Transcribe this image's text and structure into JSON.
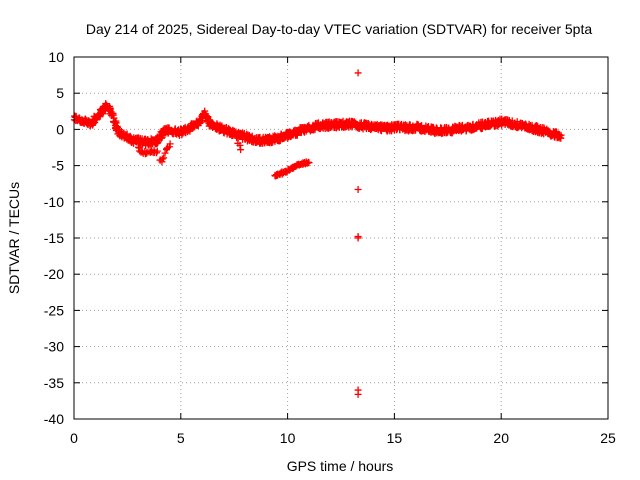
{
  "chart_data": {
    "type": "scatter",
    "title": "Day 214 of 2025, Sidereal Day-to-day VTEC variation (SDTVAR) for receiver 5pta",
    "xlabel": "GPS time / hours",
    "ylabel": "SDTVAR / TECUs",
    "xlim": [
      0,
      25
    ],
    "ylim": [
      -40,
      10
    ],
    "xticks": [
      "0",
      "5",
      "10",
      "15",
      "20",
      "25"
    ],
    "yticks": [
      "10",
      "5",
      "0",
      "-5",
      "-10",
      "-15",
      "-20",
      "-25",
      "-30",
      "-35",
      "-40"
    ],
    "grid": true,
    "marker": "+",
    "series": [
      {
        "name": "SDTVAR",
        "color": "#ff0000",
        "trace": [
          [
            0.0,
            1.5
          ],
          [
            0.2,
            1.5
          ],
          [
            0.5,
            1.0
          ],
          [
            0.8,
            0.8
          ],
          [
            1.0,
            1.5
          ],
          [
            1.2,
            2.2
          ],
          [
            1.5,
            3.2
          ],
          [
            1.7,
            2.7
          ],
          [
            1.9,
            1.0
          ],
          [
            2.1,
            -0.3
          ],
          [
            2.4,
            -1.0
          ],
          [
            2.7,
            -1.5
          ],
          [
            3.0,
            -1.5
          ],
          [
            3.3,
            -1.8
          ],
          [
            3.6,
            -1.7
          ],
          [
            3.9,
            -1.5
          ],
          [
            4.1,
            -0.8
          ],
          [
            4.3,
            0.0
          ],
          [
            4.6,
            -0.3
          ],
          [
            5.0,
            -0.4
          ],
          [
            5.3,
            0.0
          ],
          [
            5.6,
            0.5
          ],
          [
            5.9,
            1.0
          ],
          [
            6.1,
            2.2
          ],
          [
            6.3,
            1.0
          ],
          [
            6.6,
            0.5
          ],
          [
            7.0,
            0.0
          ],
          [
            7.4,
            -0.5
          ],
          [
            7.7,
            -0.8
          ],
          [
            8.0,
            -1.0
          ],
          [
            8.3,
            -1.3
          ],
          [
            8.6,
            -1.5
          ],
          [
            9.0,
            -1.5
          ],
          [
            9.4,
            -1.3
          ],
          [
            9.8,
            -1.0
          ],
          [
            10.2,
            -0.6
          ],
          [
            10.6,
            -0.2
          ],
          [
            11.0,
            0.2
          ],
          [
            11.5,
            0.5
          ],
          [
            12.0,
            0.6
          ],
          [
            12.5,
            0.7
          ],
          [
            13.0,
            0.7
          ],
          [
            13.3,
            0.5
          ],
          [
            13.6,
            0.5
          ],
          [
            14.0,
            0.3
          ],
          [
            14.4,
            0.2
          ],
          [
            14.8,
            0.2
          ],
          [
            15.2,
            0.3
          ],
          [
            15.6,
            0.2
          ],
          [
            16.0,
            0.3
          ],
          [
            16.4,
            0.1
          ],
          [
            16.8,
            -0.1
          ],
          [
            17.2,
            -0.2
          ],
          [
            17.6,
            -0.1
          ],
          [
            18.0,
            0.1
          ],
          [
            18.4,
            0.2
          ],
          [
            18.8,
            0.4
          ],
          [
            19.2,
            0.6
          ],
          [
            19.6,
            0.8
          ],
          [
            20.0,
            1.0
          ],
          [
            20.4,
            0.9
          ],
          [
            20.8,
            0.6
          ],
          [
            21.2,
            0.4
          ],
          [
            21.6,
            0.1
          ],
          [
            22.0,
            -0.2
          ],
          [
            22.4,
            -0.6
          ],
          [
            22.8,
            -0.8
          ]
        ],
        "branch": [
          [
            3.0,
            -2.5
          ],
          [
            3.2,
            -3.2
          ],
          [
            3.9,
            -3.0
          ],
          [
            4.0,
            -4.2
          ],
          [
            4.1,
            -4.5
          ],
          [
            4.3,
            -3.0
          ],
          [
            4.5,
            -2.0
          ],
          [
            7.7,
            -2.0
          ],
          [
            7.8,
            -2.8
          ]
        ],
        "segment": [
          [
            9.4,
            -6.5
          ],
          [
            9.7,
            -6.1
          ],
          [
            10.0,
            -5.7
          ],
          [
            10.3,
            -5.2
          ],
          [
            10.6,
            -4.8
          ],
          [
            10.9,
            -4.6
          ],
          [
            11.0,
            -4.6
          ]
        ],
        "outliers": [
          [
            13.3,
            7.8
          ],
          [
            13.3,
            -8.3
          ],
          [
            13.3,
            -14.8
          ],
          [
            13.3,
            -15.0
          ],
          [
            13.3,
            -36.0
          ],
          [
            13.3,
            -36.6
          ]
        ]
      }
    ]
  }
}
